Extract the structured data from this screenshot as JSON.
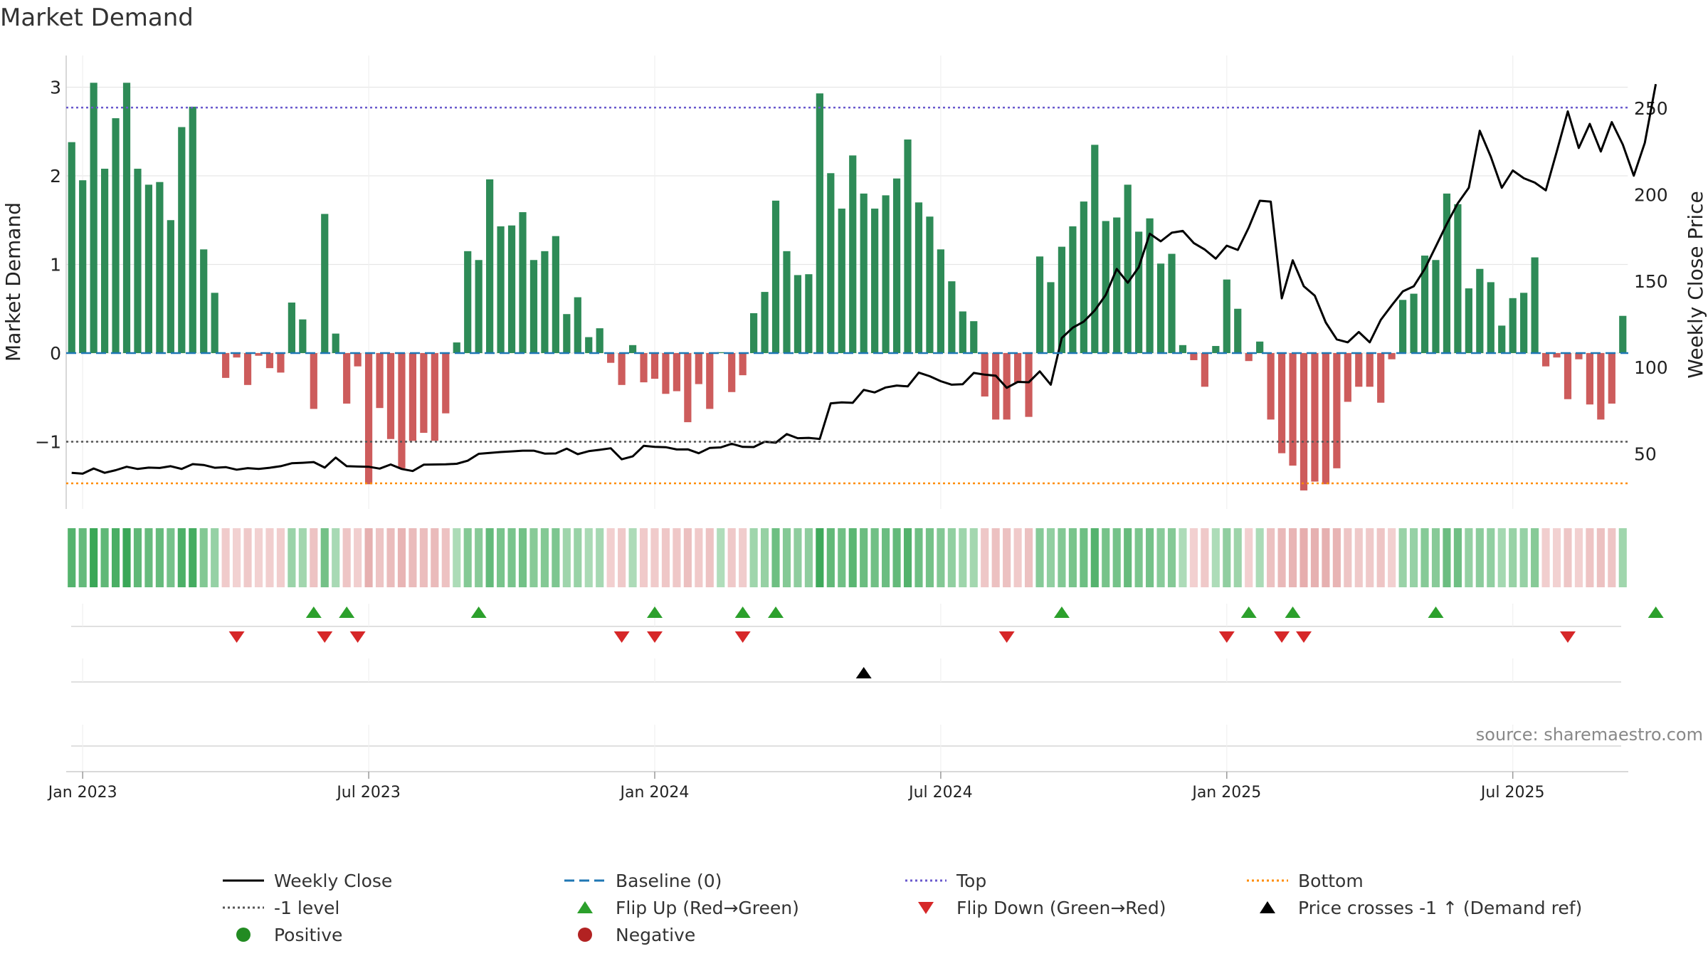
{
  "colors": {
    "positive": "#2e8b57",
    "negative": "#cd5c5c",
    "close": "#000000",
    "baseline": "#1f77b4",
    "top": "#6a5acd",
    "bottom": "#ff8c00",
    "minus_one": "#555555",
    "flip_up": "#2ca02c",
    "flip_down": "#d62728",
    "cross": "#000000",
    "positive_dot": "#228b22",
    "negative_dot": "#b22222",
    "grid": "#e6e6e6",
    "source": "#888888"
  },
  "chart_data": {
    "type": "bar+line",
    "title": "Market Demand",
    "ylabel": "Market Demand",
    "y2label": "Weekly Close Price",
    "ylim": [
      -1.8,
      3.3
    ],
    "y2lim": [
      14,
      276
    ],
    "yticks": [
      -1,
      0,
      1,
      2,
      3
    ],
    "ytick_labels": [
      "−1",
      "0",
      "1",
      "2",
      "3"
    ],
    "y2ticks": [
      50,
      100,
      150,
      200,
      250
    ],
    "y2tick_labels": [
      "50",
      "100",
      "150",
      "200",
      "250"
    ],
    "xtick_labels": [
      "Jan 2023",
      "Jul 2023",
      "Jan 2024",
      "Jul 2024",
      "Jan 2025",
      "Jul 2025"
    ],
    "xtick_weeks": [
      0,
      26,
      52,
      78,
      104,
      130
    ],
    "start_week": -1,
    "demand": [
      2.38,
      1.95,
      3.05,
      2.08,
      2.65,
      3.05,
      2.08,
      1.9,
      1.93,
      1.5,
      2.55,
      2.78,
      1.17,
      0.68,
      -0.28,
      -0.05,
      -0.36,
      -0.03,
      -0.17,
      -0.22,
      0.57,
      0.38,
      -0.63,
      1.57,
      0.22,
      -0.57,
      -0.15,
      -1.48,
      -0.62,
      -0.97,
      -1.3,
      -0.99,
      -0.9,
      -0.99,
      -0.68,
      0.12,
      1.15,
      1.05,
      1.96,
      1.43,
      1.44,
      1.59,
      1.05,
      1.15,
      1.32,
      0.44,
      0.63,
      0.18,
      0.28,
      -0.11,
      -0.36,
      0.09,
      -0.33,
      -0.29,
      -0.46,
      -0.43,
      -0.78,
      -0.35,
      -0.63,
      0.01,
      -0.44,
      -0.25,
      0.45,
      0.69,
      1.72,
      1.15,
      0.88,
      0.89,
      2.93,
      2.03,
      1.63,
      2.23,
      1.8,
      1.63,
      1.78,
      1.97,
      2.41,
      1.7,
      1.54,
      1.17,
      0.81,
      0.47,
      0.36,
      -0.49,
      -0.75,
      -0.75,
      -0.33,
      -0.72,
      1.09,
      0.8,
      1.2,
      1.43,
      1.71,
      2.35,
      1.49,
      1.53,
      1.9,
      1.37,
      1.52,
      1.01,
      1.12,
      0.09,
      -0.08,
      -0.38,
      0.08,
      0.83,
      0.5,
      -0.09,
      0.13,
      -0.75,
      -1.13,
      -1.27,
      -1.55,
      -1.45,
      -1.48,
      -1.3,
      -0.55,
      -0.38,
      -0.38,
      -0.56,
      -0.07,
      0.6,
      0.67,
      1.1,
      1.05,
      1.8,
      1.68,
      0.73,
      0.95,
      0.8,
      0.31,
      0.62,
      0.68,
      1.08,
      -0.15,
      -0.05,
      -0.52,
      -0.07,
      -0.58,
      -0.75,
      -0.57,
      0.42
    ],
    "close": [
      39,
      38.5,
      41.5,
      39,
      40.5,
      42.5,
      41.2,
      42,
      41.8,
      42.8,
      41.2,
      44,
      43.5,
      41.9,
      42.3,
      40.8,
      41.7,
      41.2,
      41.9,
      42.8,
      44.5,
      44.8,
      45.2,
      42,
      47.8,
      42.8,
      42.6,
      42.5,
      41.4,
      43.8,
      41.2,
      40,
      43.7,
      43.8,
      43.9,
      44.2,
      46,
      50,
      50.5,
      51,
      51.4,
      51.8,
      51.8,
      50.1,
      50.2,
      53,
      49.8,
      51.5,
      52.3,
      53.2,
      46.8,
      48.5,
      54.6,
      54,
      53.8,
      52.5,
      52.6,
      50.3,
      53.4,
      53.7,
      55.8,
      54,
      53.9,
      57,
      56.4,
      61.4,
      59,
      59.2,
      58.6,
      79.2,
      79.8,
      79.5,
      87,
      85.5,
      88.4,
      89.5,
      89,
      97,
      94.9,
      92,
      90,
      90.3,
      96.8,
      95.8,
      95.2,
      88.2,
      91.6,
      91.4,
      97.7,
      90,
      117,
      123,
      126.5,
      133,
      142,
      157,
      149,
      158,
      177.4,
      173,
      178,
      179,
      172,
      168.2,
      163,
      170.5,
      168,
      181,
      196.5,
      196,
      140,
      162,
      147,
      141.5,
      126,
      116.2,
      114.5,
      120.5,
      114.5,
      127.5,
      136,
      144,
      147,
      157,
      170,
      183,
      195,
      204,
      237,
      222,
      204,
      214,
      209.5,
      207,
      202.5,
      225,
      248.2,
      227,
      241,
      225,
      242,
      229,
      211,
      230,
      264
    ],
    "levels": {
      "baseline": 0,
      "top": 2.77,
      "bottom": -1.47,
      "minus_one": -1
    },
    "flip_up_weeks": [
      21,
      24,
      36,
      52,
      60,
      63,
      89,
      106,
      110,
      123,
      143
    ],
    "flip_down_weeks": [
      14,
      22,
      25,
      49,
      52,
      60,
      84,
      104,
      109,
      111,
      135
    ],
    "price_cross_weeks": [
      71
    ]
  },
  "source": "source: sharemaestro.com",
  "legend": [
    {
      "label": "Weekly Close",
      "type": "line",
      "color": "#000000",
      "dash": ""
    },
    {
      "label": "Baseline (0)",
      "type": "line",
      "color": "#1f77b4",
      "dash": "14 7"
    },
    {
      "label": "Top",
      "type": "line",
      "color": "#6a5acd",
      "dash": "3 4"
    },
    {
      "label": "Bottom",
      "type": "line",
      "color": "#ff8c00",
      "dash": "3 4"
    },
    {
      "label": "-1 level",
      "type": "line",
      "color": "#555555",
      "dash": "3 4"
    },
    {
      "label": "Flip Up (Red→Green)",
      "type": "tri-up",
      "color": "#2ca02c"
    },
    {
      "label": "Flip Down (Green→Red)",
      "type": "tri-down",
      "color": "#d62728"
    },
    {
      "label": "Price crosses -1 ↑ (Demand ref)",
      "type": "tri-up",
      "color": "#000000"
    },
    {
      "label": "Positive",
      "type": "dot",
      "color": "#228b22"
    },
    {
      "label": "Negative",
      "type": "dot",
      "color": "#b22222"
    }
  ]
}
